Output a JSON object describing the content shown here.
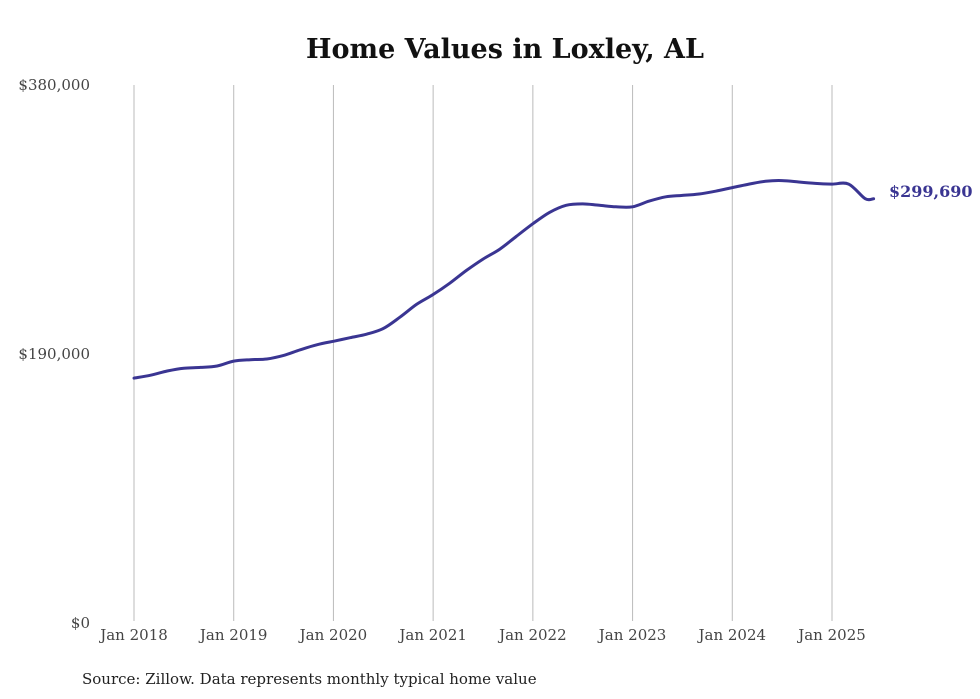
{
  "chart_data": {
    "type": "line",
    "title": "Home Values in Loxley, AL",
    "source": "Source: Zillow. Data represents monthly typical home value",
    "ylim": [
      0,
      380000
    ],
    "yticks": [
      {
        "value": 0,
        "label": "$0"
      },
      {
        "value": 190000,
        "label": "$190,000"
      },
      {
        "value": 380000,
        "label": "$380,000"
      }
    ],
    "xlim": [
      2018.0,
      2025.5
    ],
    "xticks": [
      {
        "value": 2018,
        "label": "Jan 2018"
      },
      {
        "value": 2019,
        "label": "Jan 2019"
      },
      {
        "value": 2020,
        "label": "Jan 2020"
      },
      {
        "value": 2021,
        "label": "Jan 2021"
      },
      {
        "value": 2022,
        "label": "Jan 2022"
      },
      {
        "value": 2023,
        "label": "Jan 2023"
      },
      {
        "value": 2024,
        "label": "Jan 2024"
      },
      {
        "value": 2025,
        "label": "Jan 2025"
      }
    ],
    "grid": "vertical",
    "color": "#3a3592",
    "end_label": "$299,690",
    "series": [
      {
        "x": [
          2018.0,
          2018.167,
          2018.333,
          2018.5,
          2018.667,
          2018.833,
          2019.0,
          2019.167,
          2019.333,
          2019.5,
          2019.667,
          2019.833,
          2020.0,
          2020.167,
          2020.333,
          2020.5,
          2020.667,
          2020.833,
          2021.0,
          2021.167,
          2021.333,
          2021.5,
          2021.667,
          2021.833,
          2022.0,
          2022.167,
          2022.333,
          2022.5,
          2022.667,
          2022.833,
          2023.0,
          2023.167,
          2023.333,
          2023.5,
          2023.667,
          2023.833,
          2024.0,
          2024.167,
          2024.333,
          2024.5,
          2024.667,
          2024.833,
          2025.0,
          2025.167,
          2025.333,
          2025.417
        ],
        "values": [
          173000,
          175000,
          178000,
          180000,
          180500,
          181500,
          185000,
          186000,
          186500,
          189000,
          193000,
          196500,
          199000,
          201500,
          204000,
          208000,
          216000,
          225000,
          232000,
          240000,
          249000,
          257000,
          264000,
          273000,
          282000,
          290000,
          295000,
          296000,
          295000,
          294000,
          294000,
          298000,
          301000,
          302000,
          303000,
          305000,
          307500,
          310000,
          312000,
          312500,
          311500,
          310500,
          310000,
          310000,
          299690,
          299690
        ]
      }
    ]
  }
}
